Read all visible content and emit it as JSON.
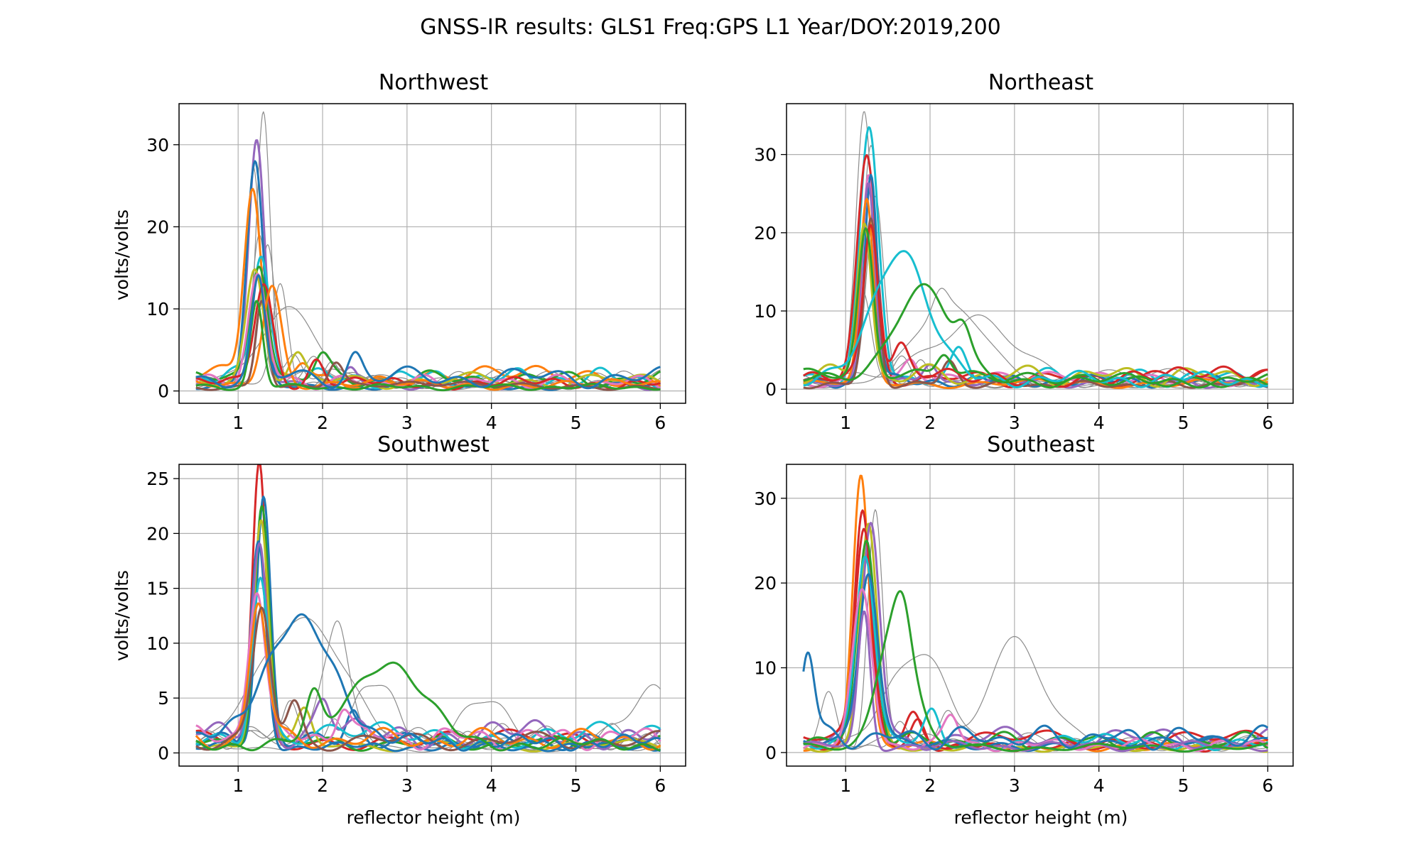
{
  "figure": {
    "title": "GNSS-IR results: GLS1 Freq:GPS L1 Year/DOY:2019,200",
    "colors": {
      "grid": "#b0b0b0",
      "faint": "#8c8c8c",
      "palette": [
        "#1f77b4",
        "#ff7f0e",
        "#2ca02c",
        "#d62728",
        "#9467bd",
        "#8c564b",
        "#e377c2",
        "#7f7f7f",
        "#bcbd22",
        "#17becf"
      ]
    }
  },
  "chart_data": [
    {
      "type": "line",
      "title": "Northwest",
      "xlabel": "",
      "ylabel": "volts/volts",
      "xlim": [
        0.3,
        6.3
      ],
      "ylim": [
        -1.5,
        35
      ],
      "xticks": [
        1,
        2,
        3,
        4,
        5,
        6
      ],
      "yticks": [
        0,
        10,
        20,
        30
      ],
      "grid": true,
      "x_range": [
        0.5,
        6.0
      ],
      "main_peak_height": 1.22,
      "bold_series": [
        {
          "color": "purple",
          "peak": 30.3,
          "peak_x": 1.22
        },
        {
          "color": "blue",
          "peak": 27.2,
          "peak_x": 1.2
        },
        {
          "color": "orange",
          "peak": 23.0,
          "peak_x": 1.17
        },
        {
          "color": "cyan",
          "peak": 15.5,
          "peak_x": 1.27
        },
        {
          "color": "green",
          "peak": 14.8,
          "peak_x": 1.25
        },
        {
          "color": "olive",
          "peak": 14.0,
          "peak_x": 1.2
        },
        {
          "color": "pink",
          "peak": 13.0,
          "peak_x": 1.23
        },
        {
          "color": "red",
          "peak": 12.2,
          "peak_x": 1.3
        },
        {
          "color": "orange",
          "peak": 12.3,
          "peak_x": 1.4
        },
        {
          "color": "brown",
          "peak": 10.8,
          "peak_x": 1.28
        },
        {
          "color": "green",
          "peak": 10.5,
          "peak_x": 1.22
        },
        {
          "color": "blue",
          "peak": 11.5,
          "peak_x": 1.24
        }
      ],
      "faint_series": [
        {
          "peak": 33.2,
          "peak_x": 1.3
        },
        {
          "peak": 25.5,
          "peak_x": 1.18
        },
        {
          "peak": 17.0,
          "peak_x": 1.25
        },
        {
          "peak": 16.0,
          "peak_x": 1.35
        },
        {
          "peak": 12.0,
          "peak_x": 1.5
        },
        {
          "peak": 9.5,
          "peak_x": 1.6
        }
      ]
    },
    {
      "type": "line",
      "title": "Northeast",
      "xlabel": "",
      "ylabel": "",
      "xlim": [
        0.3,
        6.3
      ],
      "ylim": [
        -1.8,
        36.5
      ],
      "xticks": [
        1,
        2,
        3,
        4,
        5,
        6
      ],
      "yticks": [
        0,
        10,
        20,
        30
      ],
      "grid": true,
      "x_range": [
        0.5,
        6.0
      ],
      "main_peak_height": 1.25,
      "bold_series": [
        {
          "color": "cyan",
          "peak": 31.0,
          "peak_x": 1.28
        },
        {
          "color": "red",
          "peak": 27.5,
          "peak_x": 1.25
        },
        {
          "color": "pink",
          "peak": 27.0,
          "peak_x": 1.27
        },
        {
          "color": "blue",
          "peak": 26.5,
          "peak_x": 1.3
        },
        {
          "color": "purple",
          "peak": 25.0,
          "peak_x": 1.27
        },
        {
          "color": "orange",
          "peak": 23.0,
          "peak_x": 1.25
        },
        {
          "color": "brown",
          "peak": 21.0,
          "peak_x": 1.3
        },
        {
          "color": "olive",
          "peak": 20.0,
          "peak_x": 1.22
        },
        {
          "color": "red",
          "peak": 19.0,
          "peak_x": 1.3
        },
        {
          "color": "green",
          "peak": 18.0,
          "peak_x": 1.24
        },
        {
          "color": "cyan",
          "peak": 16.8,
          "peak_x": 1.65
        },
        {
          "color": "green",
          "peak": 12.0,
          "peak_x": 1.9
        }
      ],
      "faint_series": [
        {
          "peak": 34.8,
          "peak_x": 1.22
        },
        {
          "peak": 30.0,
          "peak_x": 1.3
        },
        {
          "peak": 24.0,
          "peak_x": 1.35
        },
        {
          "peak": 12.5,
          "peak_x": 1.2
        },
        {
          "peak": 10.0,
          "peak_x": 2.25
        },
        {
          "peak": 7.5,
          "peak_x": 2.6
        }
      ]
    },
    {
      "type": "line",
      "title": "Southwest",
      "xlabel": "reflector height (m)",
      "ylabel": "volts/volts",
      "xlim": [
        0.3,
        6.3
      ],
      "ylim": [
        -1.2,
        26.3
      ],
      "xticks": [
        1,
        2,
        3,
        4,
        5,
        6
      ],
      "yticks": [
        0,
        5,
        10,
        15,
        20,
        25
      ],
      "grid": true,
      "x_range": [
        0.5,
        6.0
      ],
      "main_peak_height": 1.25,
      "bold_series": [
        {
          "color": "red",
          "peak": 25.0,
          "peak_x": 1.25
        },
        {
          "color": "blue",
          "peak": 22.4,
          "peak_x": 1.3
        },
        {
          "color": "green",
          "peak": 22.0,
          "peak_x": 1.28
        },
        {
          "color": "olive",
          "peak": 20.8,
          "peak_x": 1.27
        },
        {
          "color": "blue",
          "peak": 18.5,
          "peak_x": 1.24
        },
        {
          "color": "purple",
          "peak": 17.5,
          "peak_x": 1.25
        },
        {
          "color": "cyan",
          "peak": 15.0,
          "peak_x": 1.26
        },
        {
          "color": "pink",
          "peak": 14.0,
          "peak_x": 1.22
        },
        {
          "color": "orange",
          "peak": 12.6,
          "peak_x": 1.24
        },
        {
          "color": "brown",
          "peak": 12.0,
          "peak_x": 1.28
        },
        {
          "color": "blue",
          "peak": 11.0,
          "peak_x": 1.72
        },
        {
          "color": "green",
          "peak": 7.5,
          "peak_x": 2.75
        }
      ],
      "faint_series": [
        {
          "peak": 11.8,
          "peak_x": 1.75
        },
        {
          "peak": 8.8,
          "peak_x": 2.15
        },
        {
          "peak": 4.8,
          "peak_x": 2.6
        },
        {
          "peak": 4.3,
          "peak_x": 3.9
        },
        {
          "peak": 4.2,
          "peak_x": 5.9
        }
      ]
    },
    {
      "type": "line",
      "title": "Southeast",
      "xlabel": "reflector height (m)",
      "ylabel": "",
      "xlim": [
        0.3,
        6.3
      ],
      "ylim": [
        -1.6,
        34
      ],
      "xticks": [
        1,
        2,
        3,
        4,
        5,
        6
      ],
      "yticks": [
        0,
        10,
        20,
        30
      ],
      "grid": true,
      "x_range": [
        0.5,
        6.0
      ],
      "main_peak_height": 1.2,
      "bold_series": [
        {
          "color": "orange",
          "peak": 32.3,
          "peak_x": 1.18
        },
        {
          "color": "red",
          "peak": 28.2,
          "peak_x": 1.2
        },
        {
          "color": "olive",
          "peak": 26.5,
          "peak_x": 1.27
        },
        {
          "color": "purple",
          "peak": 25.5,
          "peak_x": 1.3
        },
        {
          "color": "red",
          "peak": 24.5,
          "peak_x": 1.22
        },
        {
          "color": "green",
          "peak": 23.5,
          "peak_x": 1.25
        },
        {
          "color": "cyan",
          "peak": 22.0,
          "peak_x": 1.23
        },
        {
          "color": "blue",
          "peak": 20.0,
          "peak_x": 1.27
        },
        {
          "color": "pink",
          "peak": 18.0,
          "peak_x": 1.2
        },
        {
          "color": "purple",
          "peak": 15.8,
          "peak_x": 1.22
        },
        {
          "color": "green",
          "peak": 15.8,
          "peak_x": 1.6
        },
        {
          "color": "blue",
          "peak": 10.5,
          "peak_x": 0.55
        }
      ],
      "faint_series": [
        {
          "peak": 27.0,
          "peak_x": 1.35
        },
        {
          "peak": 12.3,
          "peak_x": 3.0
        },
        {
          "peak": 11.0,
          "peak_x": 1.85
        },
        {
          "peak": 6.0,
          "peak_x": 0.8
        }
      ]
    }
  ]
}
